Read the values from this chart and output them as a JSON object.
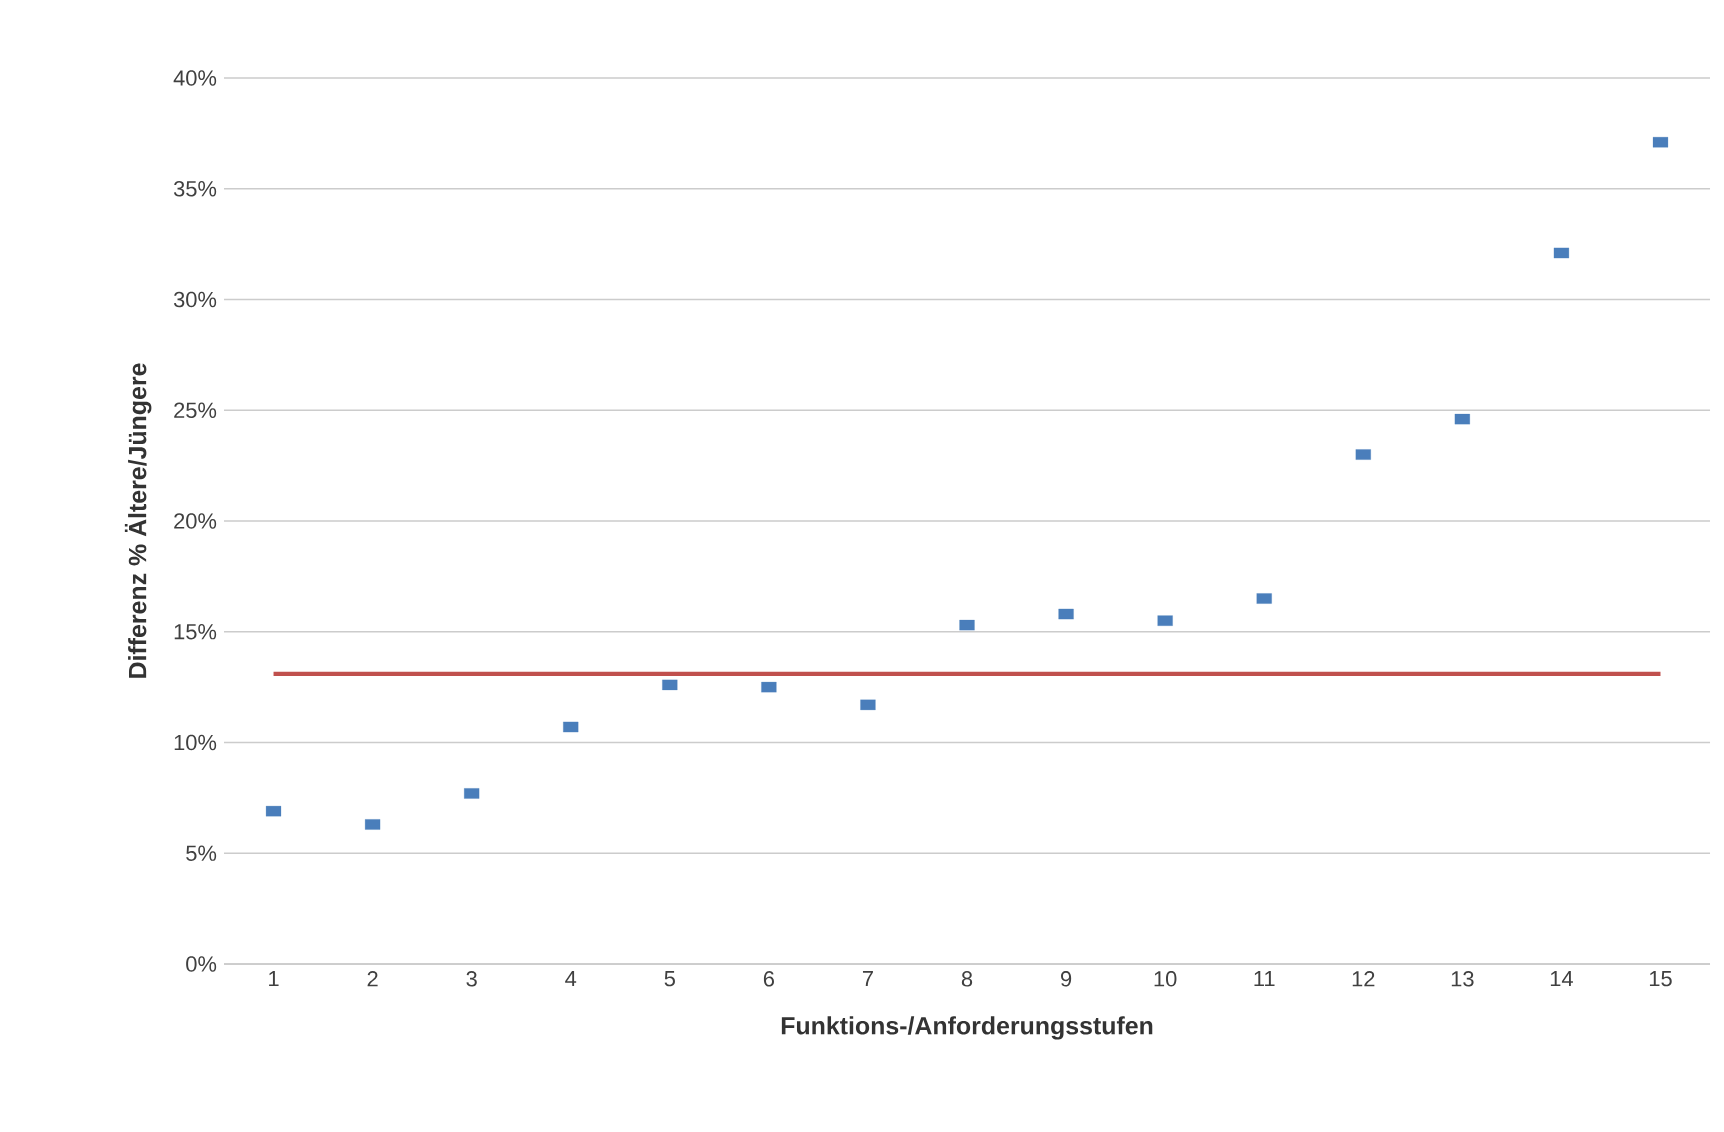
{
  "chart_data": {
    "type": "scatter",
    "xlabel": "Funktions-/Anforderungsstufen",
    "ylabel": "Differenz % Ältere/Jüngere",
    "categories": [
      "1",
      "2",
      "3",
      "4",
      "5",
      "6",
      "7",
      "8",
      "9",
      "10",
      "11",
      "12",
      "13",
      "14",
      "15"
    ],
    "values": [
      6.9,
      6.3,
      7.7,
      10.7,
      12.6,
      12.5,
      11.7,
      15.3,
      15.8,
      15.5,
      16.5,
      23.0,
      24.6,
      32.1,
      37.1
    ],
    "color": "#4a7ebb",
    "marker": "square",
    "grid": "y",
    "ylim": [
      0,
      40
    ],
    "yticks": [
      {
        "value": 0,
        "label": "0%"
      },
      {
        "value": 5,
        "label": "5%"
      },
      {
        "value": 10,
        "label": "10%"
      },
      {
        "value": 15,
        "label": "15%"
      },
      {
        "value": 20,
        "label": "20%"
      },
      {
        "value": 25,
        "label": "25%"
      },
      {
        "value": 30,
        "label": "30%"
      },
      {
        "value": 35,
        "label": "35%"
      },
      {
        "value": 40,
        "label": "40%"
      }
    ],
    "ref_lines": [
      {
        "axis": "y",
        "value": 13.1,
        "color": "#c0504d"
      }
    ]
  }
}
